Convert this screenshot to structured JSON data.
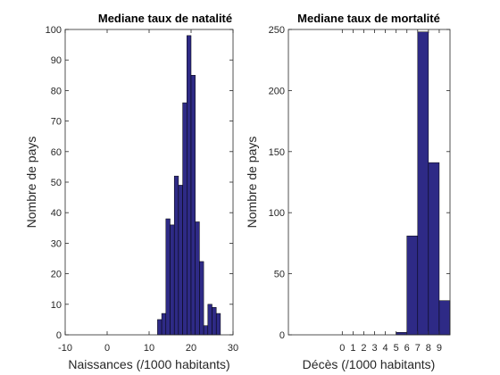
{
  "chart_data": [
    {
      "type": "bar",
      "title": "Mediane taux de natalité",
      "xlabel": "Naissances (/1000 habitants)",
      "ylabel": "Nombre de pays",
      "xlim": [
        -10,
        30
      ],
      "ylim": [
        0,
        100
      ],
      "xticks": [
        -10,
        0,
        10,
        20,
        30
      ],
      "yticks": [
        0,
        10,
        20,
        30,
        40,
        50,
        60,
        70,
        80,
        90,
        100
      ],
      "bin_width": 1,
      "x": [
        12.5,
        13.5,
        14.5,
        15.5,
        16.5,
        17.5,
        18.5,
        19.5,
        20.5,
        21.5,
        22.5,
        23.5,
        24.5,
        25.5,
        26.5
      ],
      "values": [
        5,
        7,
        38,
        36,
        52,
        49,
        76,
        98,
        85,
        37,
        24,
        3,
        10,
        9,
        7
      ],
      "bar_color": "#2e2a86",
      "grid": false
    },
    {
      "type": "bar",
      "title": "Mediane taux de mortalité",
      "xlabel": "Décès (/1000 habitants)",
      "ylabel": "Nombre de pays",
      "xlim": [
        -5,
        10
      ],
      "ylim": [
        0,
        250
      ],
      "xticks": [
        0,
        1,
        2,
        3,
        4,
        5,
        6,
        7,
        8,
        9
      ],
      "yticks": [
        0,
        50,
        100,
        150,
        200,
        250
      ],
      "bin_width": 1,
      "x": [
        5.5,
        6.5,
        7.5,
        8.5,
        9.5
      ],
      "values": [
        2,
        81,
        248,
        141,
        28
      ],
      "bar_color": "#2e2a86",
      "grid": false
    }
  ]
}
